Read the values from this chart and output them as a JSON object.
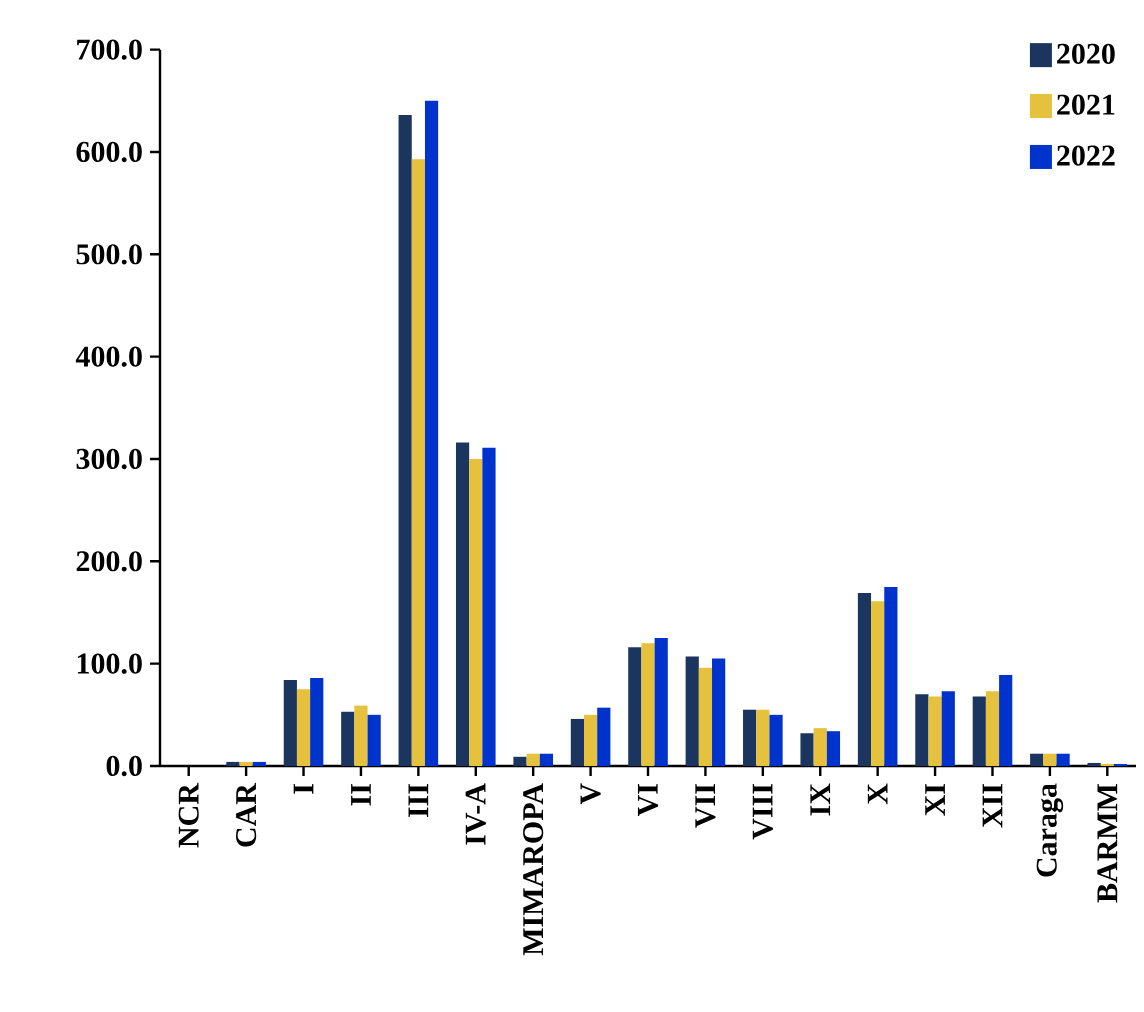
{
  "chart_data": {
    "type": "bar",
    "categories": [
      "NCR",
      "CAR",
      "I",
      "II",
      "III",
      "IV-A",
      "MIMAROPA",
      "V",
      "VI",
      "VII",
      "VIII",
      "IX",
      "X",
      "XI",
      "XII",
      "Caraga",
      "BARMM"
    ],
    "series": [
      {
        "name": "2020",
        "color": "#1c355e",
        "values": [
          0,
          4,
          84,
          53,
          636,
          316,
          9,
          46,
          116,
          107,
          55,
          32,
          169,
          70,
          68,
          12,
          3
        ]
      },
      {
        "name": "2021",
        "color": "#e5c13d",
        "values": [
          0,
          4,
          75,
          59,
          593,
          300,
          12,
          50,
          120,
          96,
          55,
          37,
          161,
          68,
          73,
          12,
          2
        ]
      },
      {
        "name": "2022",
        "color": "#0033cc",
        "values": [
          0,
          4,
          86,
          50,
          650,
          311,
          12,
          57,
          125,
          105,
          50,
          34,
          175,
          73,
          89,
          12,
          2
        ]
      }
    ],
    "ylim": [
      0,
      700
    ],
    "yticks": [
      {
        "value": 0,
        "label": "0.0"
      },
      {
        "value": 100,
        "label": "100.0"
      },
      {
        "value": 200,
        "label": "200.0"
      },
      {
        "value": 300,
        "label": "300.0"
      },
      {
        "value": 400,
        "label": "400.0"
      },
      {
        "value": 500,
        "label": "500.0"
      },
      {
        "value": 600,
        "label": "600.0"
      },
      {
        "value": 700,
        "label": "700.0"
      }
    ],
    "grid": false,
    "legend": "top right"
  }
}
